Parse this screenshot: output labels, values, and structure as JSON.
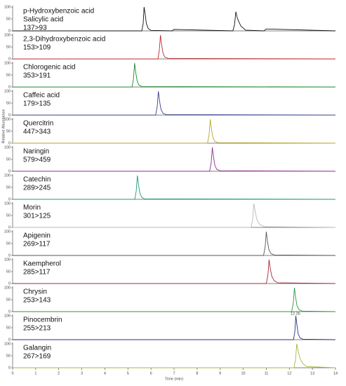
{
  "chart_data": [
    {
      "type": "line",
      "labels": [
        "p-Hydroxybenzoic acid",
        "Salicylic acid",
        "137>93"
      ],
      "xlim": [
        0,
        14
      ],
      "ylim": [
        0,
        100
      ],
      "yticks": [
        0,
        50,
        100
      ],
      "x": [
        0,
        5.6,
        5.66,
        5.7,
        5.74,
        5.8,
        5.88,
        6.0,
        6.9,
        7.0,
        9.55,
        9.62,
        9.68,
        9.74,
        9.8,
        9.9,
        10.0,
        10.1,
        10.9,
        11.0,
        14
      ],
      "series": [
        {
          "color": "#111111",
          "values": [
            0,
            0,
            30,
            100,
            75,
            30,
            10,
            2,
            0,
            6,
            0,
            25,
            80,
            55,
            40,
            20,
            12,
            3,
            0,
            8,
            0
          ]
        }
      ]
    },
    {
      "type": "line",
      "labels": [
        "2,3-Dihydroxybenzoic acid",
        "153>109"
      ],
      "xlim": [
        0,
        14
      ],
      "ylim": [
        0,
        100
      ],
      "yticks": [
        0,
        50,
        100
      ],
      "x": [
        0,
        6.3,
        6.36,
        6.41,
        6.46,
        6.52,
        6.6,
        6.75,
        14
      ],
      "series": [
        {
          "color": "#c0272d",
          "values": [
            0,
            0,
            35,
            100,
            60,
            25,
            8,
            2,
            0
          ]
        }
      ]
    },
    {
      "type": "line",
      "labels": [
        "Chlorogenic acid",
        "353>191"
      ],
      "xlim": [
        0,
        14
      ],
      "ylim": [
        0,
        100
      ],
      "yticks": [
        0,
        50,
        100
      ],
      "x": [
        0,
        5.18,
        5.24,
        5.29,
        5.34,
        5.4,
        5.48,
        5.6,
        14
      ],
      "series": [
        {
          "color": "#1a8a2a",
          "values": [
            0,
            0,
            35,
            100,
            60,
            25,
            8,
            2,
            0
          ]
        }
      ]
    },
    {
      "type": "line",
      "labels": [
        "Caffeic acid",
        "179>135"
      ],
      "xlim": [
        0,
        14
      ],
      "ylim": [
        0,
        100
      ],
      "yticks": [
        0,
        50,
        100
      ],
      "x": [
        0,
        6.2,
        6.27,
        6.32,
        6.37,
        6.43,
        6.52,
        6.65,
        14
      ],
      "series": [
        {
          "color": "#3a3f8f",
          "values": [
            0,
            0,
            35,
            100,
            60,
            25,
            8,
            2,
            0
          ]
        }
      ]
    },
    {
      "type": "line",
      "labels": [
        "Quercitrin",
        "447>343"
      ],
      "ylabel": "Relative Abundance",
      "xlim": [
        0,
        14
      ],
      "ylim": [
        0,
        100
      ],
      "yticks": [
        0,
        50,
        100
      ],
      "x": [
        0,
        8.45,
        8.52,
        8.57,
        8.62,
        8.68,
        8.76,
        8.9,
        14
      ],
      "series": [
        {
          "color": "#b5a82a",
          "values": [
            0,
            0,
            35,
            100,
            60,
            25,
            8,
            2,
            0
          ]
        }
      ]
    },
    {
      "type": "line",
      "labels": [
        "Naringin",
        "579>459"
      ],
      "xlim": [
        0,
        14
      ],
      "ylim": [
        0,
        100
      ],
      "yticks": [
        0,
        50,
        100
      ],
      "x": [
        0,
        8.54,
        8.61,
        8.66,
        8.71,
        8.77,
        8.85,
        9.0,
        14
      ],
      "series": [
        {
          "color": "#8e2a8f",
          "values": [
            0,
            0,
            35,
            100,
            60,
            25,
            8,
            2,
            0
          ]
        }
      ]
    },
    {
      "type": "line",
      "labels": [
        "Catechin",
        "289>245"
      ],
      "xlim": [
        0,
        14
      ],
      "ylim": [
        0,
        100
      ],
      "yticks": [
        0,
        50,
        100
      ],
      "x": [
        0,
        5.3,
        5.36,
        5.41,
        5.46,
        5.52,
        5.6,
        5.72,
        14
      ],
      "series": [
        {
          "color": "#1d9a7a",
          "values": [
            0,
            0,
            35,
            100,
            60,
            25,
            8,
            2,
            0
          ]
        }
      ]
    },
    {
      "type": "line",
      "labels": [
        "Morin",
        "301>125"
      ],
      "xlim": [
        0,
        14
      ],
      "ylim": [
        0,
        100
      ],
      "yticks": [
        0,
        50,
        100
      ],
      "x": [
        0,
        10.34,
        10.41,
        10.46,
        10.52,
        10.6,
        10.72,
        10.9,
        14
      ],
      "series": [
        {
          "color": "#b8b8b8",
          "values": [
            0,
            0,
            35,
            100,
            65,
            30,
            12,
            3,
            0
          ]
        }
      ]
    },
    {
      "type": "line",
      "labels": [
        "Apigenin",
        "269>117"
      ],
      "xlim": [
        0,
        14
      ],
      "ylim": [
        0,
        100
      ],
      "yticks": [
        0,
        50,
        100
      ],
      "x": [
        0,
        10.88,
        10.95,
        11.0,
        11.05,
        11.11,
        11.2,
        11.35,
        14
      ],
      "series": [
        {
          "color": "#555555",
          "values": [
            0,
            0,
            35,
            100,
            60,
            25,
            8,
            2,
            0
          ]
        }
      ]
    },
    {
      "type": "line",
      "labels": [
        "Kaempherol",
        "285>117"
      ],
      "xlim": [
        0,
        14
      ],
      "ylim": [
        0,
        100
      ],
      "yticks": [
        0,
        50,
        100
      ],
      "x": [
        0,
        11.0,
        11.07,
        11.12,
        11.17,
        11.24,
        11.34,
        11.5,
        14
      ],
      "series": [
        {
          "color": "#a02a3a",
          "values": [
            0,
            0,
            35,
            100,
            65,
            30,
            12,
            3,
            0
          ]
        }
      ]
    },
    {
      "type": "line",
      "labels": [
        "Chrysin",
        "253>143"
      ],
      "xlim": [
        0,
        14
      ],
      "ylim": [
        0,
        100
      ],
      "yticks": [
        0,
        50,
        100
      ],
      "x": [
        0,
        12.1,
        12.17,
        12.22,
        12.27,
        12.33,
        12.42,
        12.55,
        14
      ],
      "series": [
        {
          "color": "#2a9a3a",
          "values": [
            0,
            0,
            35,
            100,
            60,
            25,
            8,
            2,
            0
          ]
        }
      ]
    },
    {
      "type": "line",
      "labels": [
        "Pinocembrin",
        "255>213"
      ],
      "annotation": {
        "text": "12.26",
        "x": 12.26
      },
      "xlim": [
        0,
        14
      ],
      "ylim": [
        0,
        100
      ],
      "yticks": [
        0,
        50,
        100
      ],
      "x": [
        0,
        12.18,
        12.24,
        12.28,
        12.33,
        12.38,
        12.46,
        12.58,
        14
      ],
      "series": [
        {
          "color": "#2a2f7f",
          "values": [
            0,
            0,
            35,
            100,
            60,
            25,
            8,
            2,
            0
          ]
        }
      ]
    },
    {
      "type": "line",
      "labels": [
        "Galangin",
        "267>169"
      ],
      "xlim": [
        0,
        14
      ],
      "ylim": [
        0,
        100
      ],
      "yticks": [
        0,
        50,
        100
      ],
      "xticks": [
        0,
        1,
        2,
        3,
        4,
        5,
        6,
        7,
        8,
        9,
        10,
        11,
        12,
        13,
        14
      ],
      "xlabel": "Time (min)",
      "x": [
        0,
        12.2,
        12.27,
        12.32,
        12.38,
        12.46,
        12.58,
        12.75,
        14
      ],
      "series": [
        {
          "color": "#a8b83a",
          "values": [
            0,
            0,
            35,
            100,
            70,
            40,
            18,
            5,
            0
          ]
        }
      ]
    }
  ]
}
